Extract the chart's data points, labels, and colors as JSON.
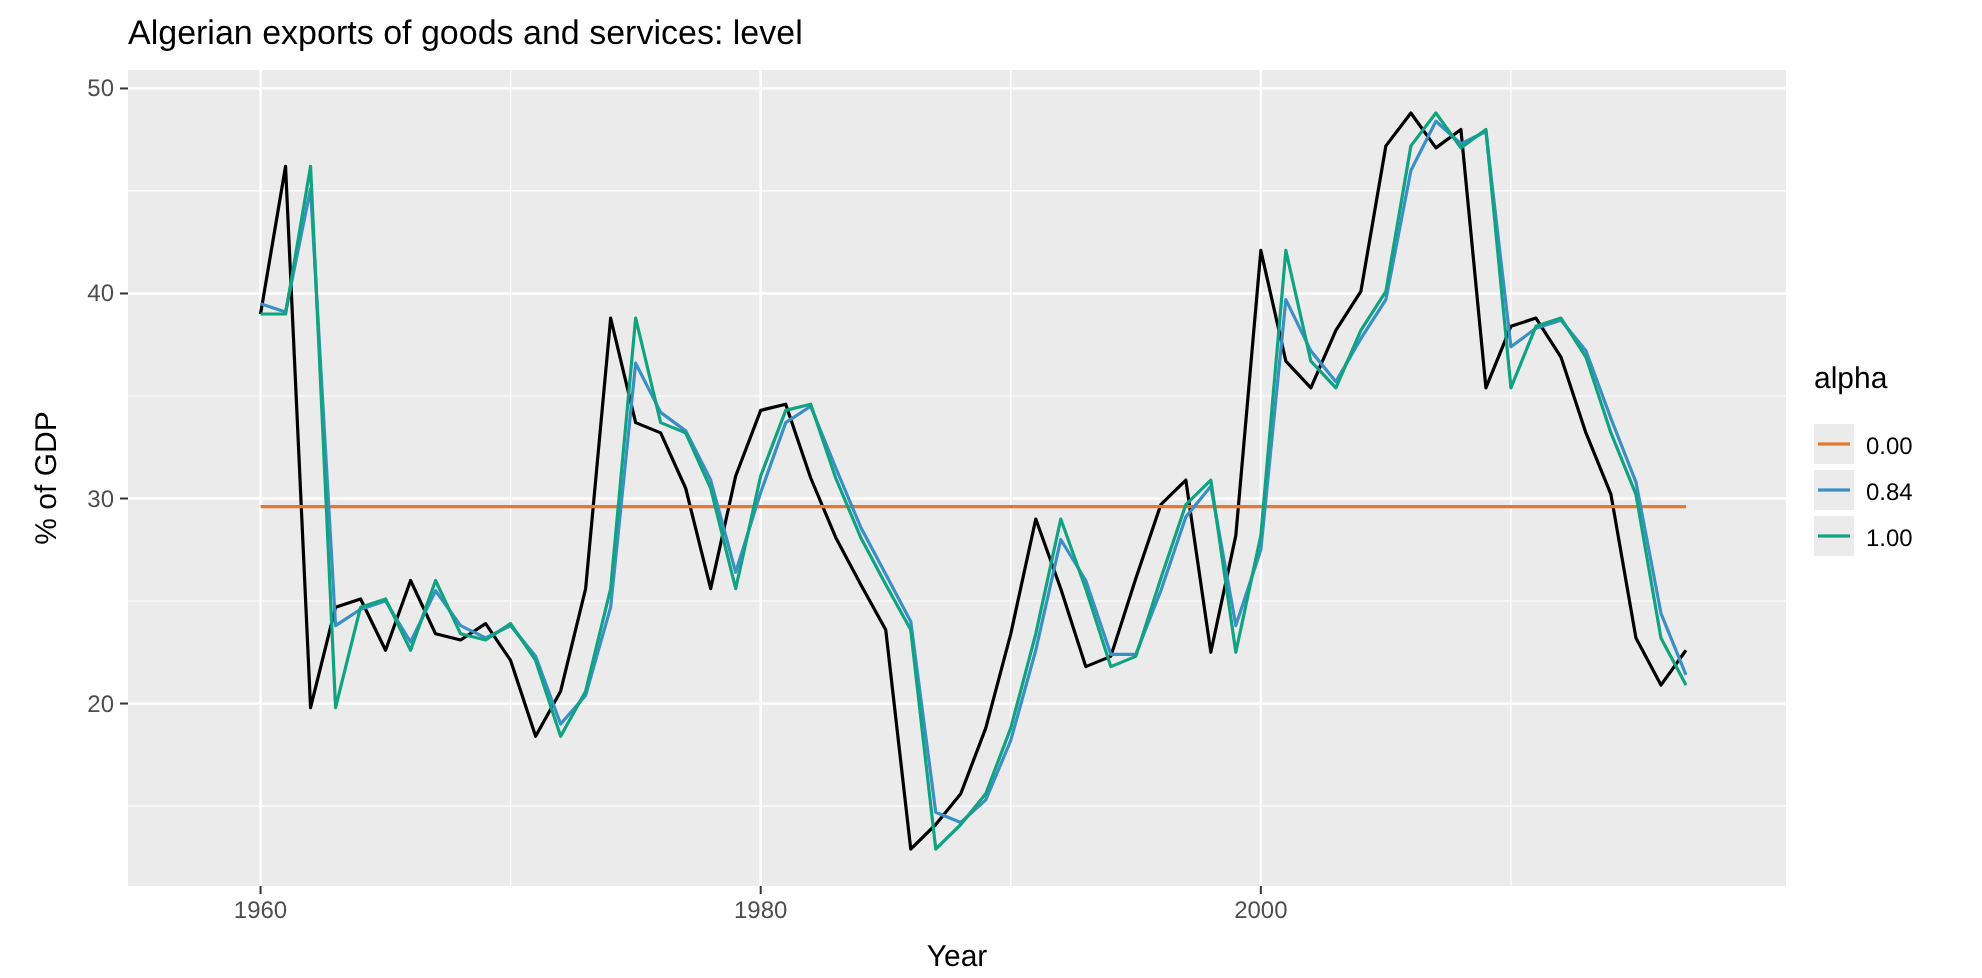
{
  "chart_data": {
    "type": "line",
    "title": "Algerian exports of goods and services: level",
    "xlabel": "Year",
    "ylabel": "% of GDP",
    "legend_title": "alpha",
    "x": [
      1960,
      1961,
      1962,
      1963,
      1964,
      1965,
      1966,
      1967,
      1968,
      1969,
      1970,
      1971,
      1972,
      1973,
      1974,
      1975,
      1976,
      1977,
      1978,
      1979,
      1980,
      1981,
      1982,
      1983,
      1984,
      1985,
      1986,
      1987,
      1988,
      1989,
      1990,
      1991,
      1992,
      1993,
      1994,
      1995,
      1996,
      1997,
      1998,
      1999,
      2000,
      2001,
      2002,
      2003,
      2004,
      2005,
      2006,
      2007,
      2008,
      2009,
      2010,
      2011,
      2012,
      2013,
      2014,
      2015,
      2016,
      2017
    ],
    "series": [
      {
        "color": "#000000",
        "values": [
          39.0,
          46.2,
          19.8,
          24.7,
          25.1,
          22.6,
          26.0,
          23.4,
          23.1,
          23.9,
          22.1,
          18.4,
          20.6,
          25.6,
          38.8,
          33.7,
          33.2,
          30.5,
          25.6,
          31.1,
          34.3,
          34.6,
          31.0,
          28.1,
          25.8,
          23.6,
          12.9,
          14.1,
          15.6,
          18.8,
          23.4,
          29.0,
          25.6,
          21.8,
          22.3,
          26.1,
          29.7,
          30.9,
          22.5,
          28.2,
          42.1,
          36.7,
          35.4,
          38.2,
          40.1,
          47.2,
          48.8,
          47.1,
          48.0,
          35.4,
          38.4,
          38.8,
          36.9,
          33.2,
          30.2,
          23.2,
          20.9,
          22.6
        ]
      },
      {
        "name": "0.00",
        "color": "#e6772e",
        "x": [
          1960,
          2017
        ],
        "values": [
          29.6,
          29.6
        ]
      },
      {
        "name": "0.84",
        "color": "#3a8fc7",
        "values": [
          39.5,
          39.1,
          45.1,
          23.8,
          24.6,
          25.0,
          23.0,
          25.5,
          23.8,
          23.2,
          23.8,
          22.3,
          19.0,
          20.4,
          24.7,
          36.6,
          34.2,
          33.3,
          30.9,
          26.4,
          30.3,
          33.7,
          34.5,
          31.5,
          28.6,
          26.3,
          24.0,
          14.7,
          14.2,
          15.3,
          18.2,
          22.6,
          28.0,
          26.0,
          22.4,
          22.4,
          25.5,
          29.1,
          30.6,
          23.8,
          27.5,
          39.7,
          37.2,
          35.7,
          37.8,
          39.7,
          46.0,
          48.4,
          47.3,
          47.9,
          37.4,
          38.3,
          38.7,
          37.2,
          33.9,
          30.8,
          24.4,
          21.4
        ]
      },
      {
        "name": "1.00",
        "color": "#0fa37f",
        "values": [
          39.0,
          39.0,
          46.2,
          19.8,
          24.7,
          25.1,
          22.6,
          26.0,
          23.4,
          23.1,
          23.9,
          22.1,
          18.4,
          20.6,
          25.6,
          38.8,
          33.7,
          33.2,
          30.5,
          25.6,
          31.1,
          34.3,
          34.6,
          31.0,
          28.1,
          25.8,
          23.6,
          12.9,
          14.1,
          15.6,
          18.8,
          23.4,
          29.0,
          25.6,
          21.8,
          22.3,
          26.1,
          29.7,
          30.9,
          22.5,
          28.2,
          42.1,
          36.7,
          35.4,
          38.2,
          40.1,
          47.2,
          48.8,
          47.1,
          48.0,
          35.4,
          38.4,
          38.8,
          36.9,
          33.2,
          30.2,
          23.2,
          20.9
        ]
      }
    ],
    "xlim": [
      1954.7,
      2021
    ],
    "ylim": [
      11.1,
      50.9
    ],
    "xticks": [
      1960,
      1980,
      2000
    ],
    "yticks": [
      20,
      30,
      40,
      50
    ],
    "grid": true,
    "legend": "right",
    "line_style": "solid",
    "marker": "none"
  }
}
